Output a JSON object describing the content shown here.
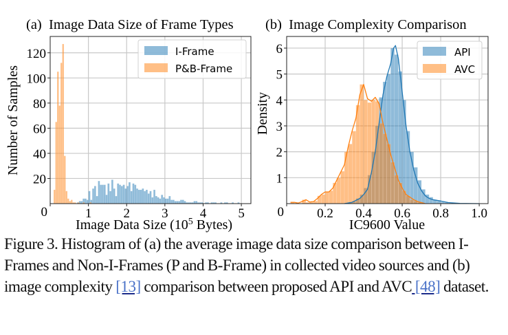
{
  "figure": {
    "caption": {
      "parts": [
        {
          "text": "Figure 3. Histogram of (a) the average image data size comparison between I-Frames and Non-I-Frames (P and B-Frame) in collected video sources and (b) image complexity ",
          "ref": false
        },
        {
          "text": "[13]",
          "ref": true
        },
        {
          "text": " comparison between proposed API and AVC",
          "ref": false
        },
        {
          "text": " [48]",
          "ref": true
        },
        {
          "text": " dataset.",
          "ref": false
        }
      ]
    }
  },
  "chart_data": [
    {
      "type": "bar",
      "subtype": "histogram",
      "title": "(a)  Image Data Size of Frame Types",
      "xlabel": "Image Data Size (10^5 Bytes)",
      "xlabel_parts": {
        "before": "Image Data Size (10",
        "sup": "5",
        "after": " Bytes)"
      },
      "ylabel": "Number of Samples",
      "xlim": [
        0,
        5.25
      ],
      "ylim": [
        0,
        133
      ],
      "xticks": [
        0,
        1,
        2,
        3,
        4,
        5
      ],
      "xtick_labels": [
        "0",
        "1",
        "2",
        "3",
        "4",
        "5"
      ],
      "yticks": [
        0,
        20,
        40,
        60,
        80,
        100,
        120
      ],
      "ytick_labels": [
        "0",
        "20",
        "40",
        "60",
        "80",
        "100",
        "120"
      ],
      "grid": true,
      "legend": {
        "position": "top-right",
        "entries": [
          "I-Frame",
          "P&B-Frame"
        ]
      },
      "series": [
        {
          "name": "I-Frame",
          "color": "#1f77b4",
          "bin_start": 0.7,
          "bin_width": 0.05,
          "values": [
            1,
            2,
            2,
            4,
            4,
            3,
            10,
            3,
            12,
            14,
            6,
            18,
            15,
            15,
            15,
            7,
            16,
            10,
            19,
            12,
            6,
            16,
            15,
            14,
            15,
            12,
            14,
            17,
            10,
            16,
            15,
            12,
            11,
            11,
            12,
            10,
            11,
            8,
            10,
            5,
            11,
            6,
            5,
            4,
            7,
            5,
            4,
            4,
            6,
            3,
            3,
            2,
            2,
            2,
            3,
            3,
            2,
            1,
            1,
            1,
            1,
            2,
            2,
            1,
            1,
            1,
            0,
            1,
            1,
            0,
            1,
            1,
            1,
            0,
            0,
            1,
            0,
            1,
            1,
            0,
            0,
            1,
            0,
            0,
            1
          ]
        },
        {
          "name": "P&B-Frame",
          "color": "#ff7f0e",
          "bin_start": 0.09,
          "bin_width": 0.045,
          "values": [
            11,
            65,
            105,
            78,
            112,
            127,
            38,
            10,
            4,
            2,
            3,
            1,
            1,
            0,
            1,
            0,
            0,
            1,
            0,
            0,
            0,
            1
          ]
        }
      ]
    },
    {
      "type": "bar",
      "subtype": "histogram+kde",
      "title": "(b)  Image Complexity Comparison",
      "xlabel": "IC9600 Value",
      "ylabel": "Density",
      "xlim": [
        0.0,
        1.046
      ],
      "ylim": [
        0,
        6.45
      ],
      "xticks": [
        0,
        0.2,
        0.4,
        0.6,
        0.8,
        1.0
      ],
      "xtick_labels": [
        "0",
        "0.2",
        "0.4",
        "0.6",
        "0.8",
        "1.0"
      ],
      "yticks": [
        1,
        2,
        3,
        4,
        5,
        6
      ],
      "ytick_labels": [
        "1",
        "2",
        "3",
        "4",
        "5",
        "6"
      ],
      "yzero_label": "0",
      "grid": true,
      "legend": {
        "position": "top-right",
        "entries": [
          "API",
          "AVC"
        ]
      },
      "series": [
        {
          "name": "API",
          "color": "#1f77b4",
          "bin_start": 0.3,
          "bin_width": 0.02,
          "values": [
            0.02,
            0.05,
            0.1,
            0.2,
            0.35,
            0.6,
            1.1,
            2.0,
            3.0,
            4.1,
            4.7,
            5.0,
            6.0,
            5.75,
            5.1,
            4.0,
            2.8,
            2.0,
            1.4,
            0.9,
            0.55,
            0.35,
            0.25,
            0.15,
            0.1,
            0.06,
            0.04,
            0.02,
            0.01
          ],
          "kde": {
            "x": [
              0.3,
              0.34,
              0.38,
              0.4,
              0.42,
              0.44,
              0.46,
              0.48,
              0.5,
              0.52,
              0.54,
              0.555,
              0.565,
              0.58,
              0.6,
              0.62,
              0.64,
              0.66,
              0.68,
              0.7,
              0.72,
              0.74,
              0.76,
              0.8,
              0.84,
              0.9,
              1.0
            ],
            "y": [
              0.0,
              0.05,
              0.2,
              0.35,
              0.55,
              1.2,
              2.0,
              3.1,
              4.2,
              4.9,
              5.4,
              6.0,
              6.1,
              5.6,
              4.3,
              3.0,
              2.0,
              1.3,
              0.8,
              0.5,
              0.3,
              0.2,
              0.15,
              0.1,
              0.04,
              0.01,
              0.0
            ]
          }
        },
        {
          "name": "AVC",
          "color": "#ff7f0e",
          "bin_start": 0.02,
          "bin_width": 0.02,
          "values": [
            0.05,
            0.02,
            0.0,
            0.15,
            0.05,
            0.05,
            0.1,
            0.3,
            0.35,
            0.45,
            0.5,
            0.8,
            1.0,
            1.25,
            2.0,
            2.3,
            2.8,
            3.8,
            4.6,
            4.0,
            3.9,
            4.0,
            3.95,
            3.1,
            2.7,
            2.3,
            1.6,
            1.1,
            0.8,
            0.5,
            0.3,
            0.15,
            0.1,
            0.05
          ],
          "kde": {
            "x": [
              0.02,
              0.04,
              0.06,
              0.08,
              0.1,
              0.12,
              0.14,
              0.16,
              0.18,
              0.2,
              0.22,
              0.24,
              0.26,
              0.28,
              0.3,
              0.32,
              0.34,
              0.36,
              0.38,
              0.4,
              0.42,
              0.44,
              0.46,
              0.48,
              0.5,
              0.52,
              0.54,
              0.56,
              0.58,
              0.6,
              0.62,
              0.64,
              0.66,
              0.68,
              0.7,
              0.72
            ],
            "y": [
              0.05,
              0.05,
              0.02,
              0.08,
              0.15,
              0.06,
              0.08,
              0.2,
              0.35,
              0.45,
              0.45,
              0.6,
              0.9,
              1.2,
              1.5,
              2.2,
              2.8,
              3.3,
              4.2,
              4.6,
              4.05,
              3.95,
              4.1,
              3.85,
              3.1,
              2.5,
              1.9,
              1.4,
              0.9,
              0.6,
              0.35,
              0.25,
              0.15,
              0.08,
              0.04,
              0.0
            ]
          }
        }
      ]
    }
  ]
}
